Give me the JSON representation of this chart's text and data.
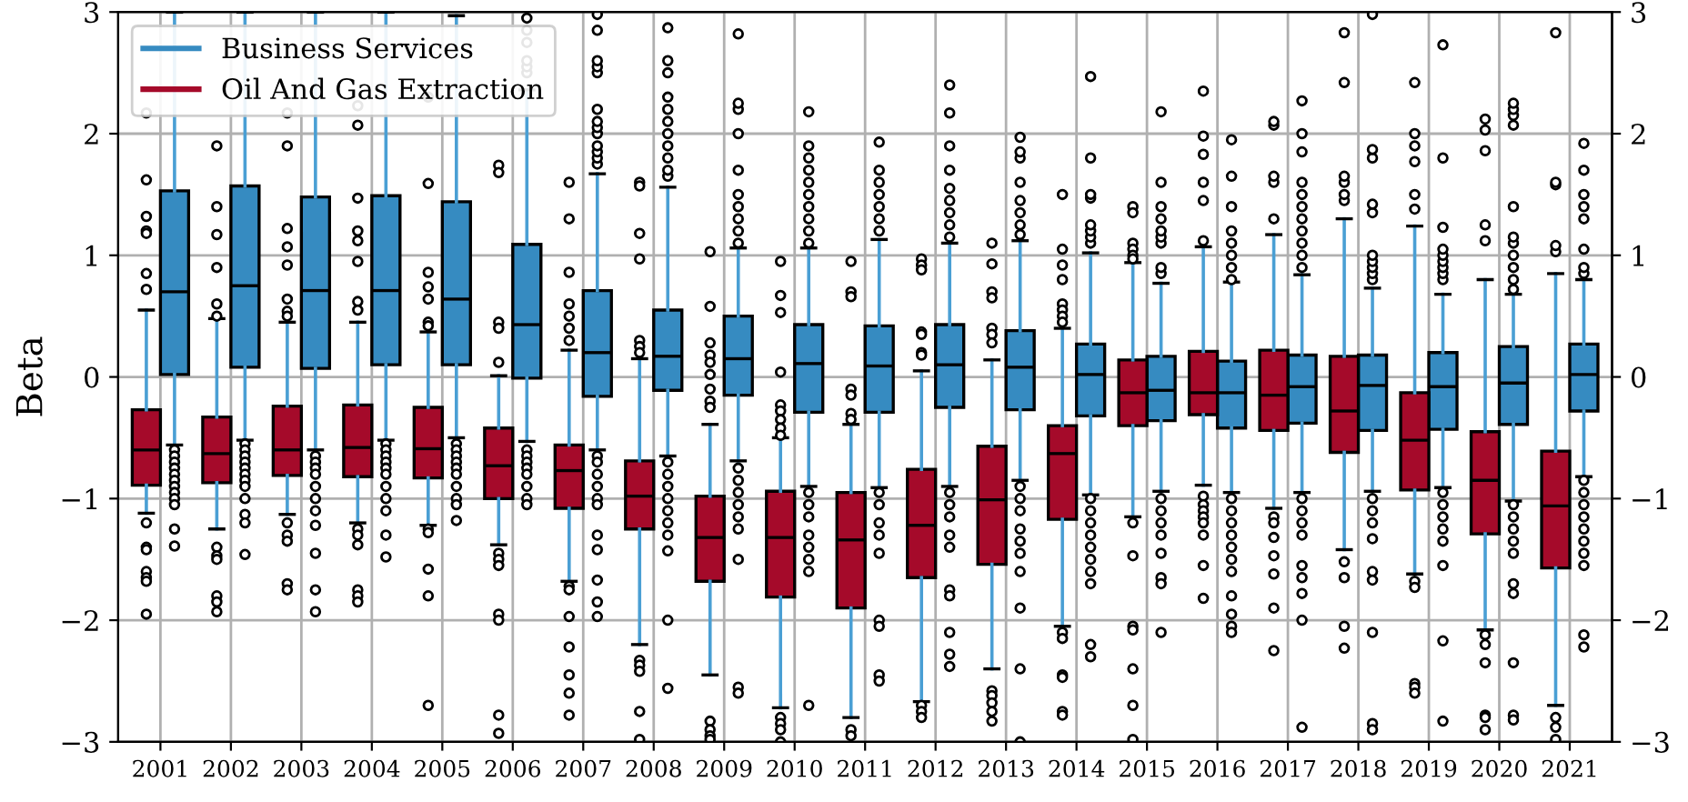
{
  "chart_data": {
    "type": "box",
    "ylabel": "Beta",
    "categories": [
      "2001",
      "2002",
      "2003",
      "2004",
      "2005",
      "2006",
      "2007",
      "2008",
      "2009",
      "2010",
      "2011",
      "2012",
      "2013",
      "2014",
      "2015",
      "2016",
      "2017",
      "2018",
      "2019",
      "2020",
      "2021"
    ],
    "ylim": [
      -3,
      3
    ],
    "yticks": [
      {
        "value": -3,
        "label": "−3"
      },
      {
        "value": -2,
        "label": "−2"
      },
      {
        "value": -1,
        "label": "−1"
      },
      0,
      1,
      2,
      3
    ],
    "y2lim": [
      -3,
      3
    ],
    "y2ticks": [
      {
        "value": -3,
        "label": "−3"
      },
      {
        "value": -2,
        "label": "−2"
      },
      {
        "value": -1,
        "label": "−1"
      },
      0,
      1,
      2,
      3
    ],
    "grid": true,
    "legend": "top left",
    "series": [
      {
        "name": "Business Services",
        "color": "#368bc1",
        "boxes": [
          {
            "low": -0.56,
            "q1": 0.02,
            "median": 0.7,
            "q3": 1.53,
            "high": 3,
            "outliers": [
              -0.6,
              -0.65,
              -0.7,
              -0.75,
              -0.8,
              -0.85,
              -0.9,
              -0.95,
              -1.0,
              -1.05,
              -1.25,
              -1.39
            ]
          },
          {
            "low": -0.52,
            "q1": 0.08,
            "median": 0.75,
            "q3": 1.57,
            "high": 3,
            "outliers": [
              -0.55,
              -0.6,
              -0.65,
              -0.7,
              -0.75,
              -0.8,
              -0.85,
              -0.9,
              -1.0,
              -1.13,
              -1.2,
              -1.46
            ]
          },
          {
            "low": -0.6,
            "q1": 0.07,
            "median": 0.71,
            "q3": 1.48,
            "high": 3,
            "outliers": [
              -0.65,
              -0.7,
              -0.75,
              -0.8,
              -0.9,
              -1.0,
              -1.1,
              -1.22,
              -1.45,
              -1.75,
              -1.93
            ]
          },
          {
            "low": -0.52,
            "q1": 0.1,
            "median": 0.71,
            "q3": 1.49,
            "high": 3,
            "outliers": [
              -0.55,
              -0.6,
              -0.65,
              -0.7,
              -0.75,
              -0.8,
              -0.9,
              -1.0,
              -1.1,
              -1.3,
              -1.48
            ]
          },
          {
            "low": -0.5,
            "q1": 0.1,
            "median": 0.64,
            "q3": 1.44,
            "high": 2.97,
            "outliers": [
              -0.55,
              -0.6,
              -0.65,
              -0.7,
              -0.75,
              -0.8,
              -0.9,
              -1.0,
              -1.05,
              -1.18
            ]
          },
          {
            "low": -0.53,
            "q1": -0.01,
            "median": 0.43,
            "q3": 1.09,
            "high": 2.36,
            "outliers": [
              2.5,
              2.55,
              2.6,
              2.75,
              2.85,
              2.95,
              -0.6,
              -0.65,
              -0.7,
              -0.75,
              -0.8,
              -0.9,
              -1.0,
              -1.05
            ]
          },
          {
            "low": -0.6,
            "q1": -0.16,
            "median": 0.2,
            "q3": 0.71,
            "high": 1.67,
            "outliers": [
              1.75,
              1.8,
              1.85,
              1.9,
              2.0,
              2.05,
              2.1,
              2.2,
              2.5,
              2.55,
              2.6,
              2.85,
              2.98,
              -0.65,
              -0.7,
              -0.8,
              -0.9,
              -1.0,
              -1.05,
              -1.3,
              -1.42,
              -1.67,
              -1.85,
              -1.97
            ]
          },
          {
            "low": -0.65,
            "q1": -0.11,
            "median": 0.17,
            "q3": 0.55,
            "high": 1.56,
            "outliers": [
              1.65,
              1.7,
              1.8,
              1.9,
              2.0,
              2.1,
              2.2,
              2.3,
              2.5,
              2.6,
              2.87,
              -0.7,
              -0.8,
              -0.9,
              -1.0,
              -1.1,
              -1.2,
              -1.3,
              -1.43,
              -2.0,
              -2.56
            ]
          },
          {
            "low": -0.69,
            "q1": -0.15,
            "median": 0.15,
            "q3": 0.5,
            "high": 1.06,
            "outliers": [
              1.1,
              1.2,
              1.3,
              1.4,
              1.5,
              1.7,
              2.0,
              2.2,
              2.25,
              2.82,
              -0.75,
              -0.85,
              -0.95,
              -1.05,
              -1.15,
              -1.25,
              -1.5,
              -2.55,
              -2.6
            ]
          },
          {
            "low": -0.9,
            "q1": -0.29,
            "median": 0.11,
            "q3": 0.43,
            "high": 1.06,
            "outliers": [
              1.1,
              1.2,
              1.3,
              1.4,
              1.5,
              1.6,
              1.7,
              1.8,
              1.9,
              2.18,
              -0.95,
              -1.05,
              -1.15,
              -1.3,
              -1.4,
              -1.5,
              -1.6,
              -2.7
            ]
          },
          {
            "low": -0.91,
            "q1": -0.29,
            "median": 0.09,
            "q3": 0.42,
            "high": 1.13,
            "outliers": [
              1.2,
              1.3,
              1.4,
              1.5,
              1.6,
              1.7,
              1.93,
              -0.95,
              -1.05,
              -1.2,
              -1.3,
              -1.45,
              -2.0,
              -2.05,
              -2.45,
              -2.5
            ]
          },
          {
            "low": -0.9,
            "q1": -0.25,
            "median": 0.1,
            "q3": 0.43,
            "high": 1.1,
            "outliers": [
              1.15,
              1.25,
              1.35,
              1.45,
              1.55,
              1.7,
              1.9,
              2.17,
              2.4,
              -0.95,
              -1.05,
              -1.15,
              -1.3,
              -1.4,
              -1.75,
              -1.8,
              -2.1,
              -2.28,
              -2.38
            ]
          },
          {
            "low": -0.85,
            "q1": -0.27,
            "median": 0.08,
            "q3": 0.38,
            "high": 1.12,
            "outliers": [
              1.17,
              1.25,
              1.35,
              1.45,
              1.6,
              1.8,
              1.85,
              1.97,
              -0.9,
              -1.0,
              -1.1,
              -1.25,
              -1.35,
              -1.45,
              -1.6,
              -1.9,
              -2.4,
              -3.0
            ]
          },
          {
            "low": -0.97,
            "q1": -0.32,
            "median": 0.02,
            "q3": 0.27,
            "high": 1.02,
            "outliers": [
              1.1,
              1.15,
              1.2,
              1.25,
              1.47,
              1.5,
              1.8,
              2.47,
              -1.0,
              -1.1,
              -1.2,
              -1.3,
              -1.4,
              -1.5,
              -1.6,
              -1.7,
              -2.2,
              -2.3
            ]
          },
          {
            "low": -0.94,
            "q1": -0.36,
            "median": -0.11,
            "q3": 0.17,
            "high": 0.77,
            "outliers": [
              0.85,
              0.9,
              1.1,
              1.15,
              1.2,
              1.3,
              1.4,
              1.6,
              2.18,
              -1.0,
              -1.1,
              -1.2,
              -1.3,
              -1.45,
              -1.65,
              -1.7,
              -2.1
            ]
          },
          {
            "low": -0.95,
            "q1": -0.42,
            "median": -0.13,
            "q3": 0.13,
            "high": 0.78,
            "outliers": [
              0.8,
              0.9,
              1.0,
              1.1,
              1.2,
              1.4,
              1.65,
              1.95,
              -1.0,
              -1.1,
              -1.2,
              -1.3,
              -1.4,
              -1.5,
              -1.6,
              -1.8,
              -1.95,
              -2.05,
              -2.1
            ]
          },
          {
            "low": -0.95,
            "q1": -0.38,
            "median": -0.08,
            "q3": 0.18,
            "high": 0.84,
            "outliers": [
              0.9,
              1.0,
              1.1,
              1.2,
              1.3,
              1.4,
              1.5,
              1.6,
              1.85,
              2.0,
              2.27,
              -1.0,
              -1.1,
              -1.2,
              -1.3,
              -1.55,
              -1.65,
              -1.78,
              -2.0,
              -2.88
            ]
          },
          {
            "low": -0.94,
            "q1": -0.44,
            "median": -0.07,
            "q3": 0.18,
            "high": 0.73,
            "outliers": [
              0.8,
              0.85,
              0.9,
              0.95,
              1.0,
              1.35,
              1.42,
              1.8,
              1.87,
              2.98,
              -1.0,
              -1.1,
              -1.2,
              -1.33,
              -1.6,
              -1.67,
              -2.1,
              -2.85,
              -2.9
            ]
          },
          {
            "low": -0.91,
            "q1": -0.43,
            "median": -0.08,
            "q3": 0.2,
            "high": 0.68,
            "outliers": [
              0.8,
              0.85,
              0.9,
              0.95,
              1.0,
              1.05,
              1.23,
              1.8,
              2.73,
              -0.95,
              -1.05,
              -1.15,
              -1.25,
              -1.35,
              -1.55,
              -2.17,
              -2.83
            ]
          },
          {
            "low": -1.02,
            "q1": -0.39,
            "median": -0.05,
            "q3": 0.25,
            "high": 0.68,
            "outliers": [
              0.72,
              0.8,
              0.9,
              1.0,
              1.1,
              1.15,
              1.4,
              2.07,
              2.15,
              2.2,
              2.25,
              -1.05,
              -1.15,
              -1.25,
              -1.35,
              -1.45,
              -1.7,
              -1.78,
              -2.35,
              -2.78,
              -2.82
            ]
          },
          {
            "low": -0.82,
            "q1": -0.28,
            "median": 0.02,
            "q3": 0.27,
            "high": 0.8,
            "outliers": [
              0.85,
              0.9,
              1.05,
              1.3,
              1.4,
              1.5,
              1.7,
              1.92,
              -0.85,
              -0.95,
              -1.05,
              -1.15,
              -1.25,
              -1.35,
              -1.45,
              -1.55,
              -2.12,
              -2.22
            ]
          }
        ]
      },
      {
        "name": "Oil And Gas Extraction",
        "color": "#a50a2a",
        "boxes": [
          {
            "low": -1.12,
            "q1": -0.89,
            "median": -0.6,
            "q3": -0.27,
            "high": 0.55,
            "outliers": [
              2.17,
              1.62,
              1.32,
              1.2,
              1.18,
              0.85,
              0.72,
              -1.2,
              -1.4,
              -1.42,
              -1.6,
              -1.65,
              -1.68,
              -1.95
            ]
          },
          {
            "low": -1.25,
            "q1": -0.87,
            "median": -0.63,
            "q3": -0.33,
            "high": 0.48,
            "outliers": [
              1.9,
              1.4,
              1.17,
              0.9,
              0.6,
              0.5,
              -1.4,
              -1.47,
              -1.5,
              -1.8,
              -1.85,
              -1.93
            ]
          },
          {
            "low": -1.13,
            "q1": -0.81,
            "median": -0.6,
            "q3": -0.24,
            "high": 0.45,
            "outliers": [
              2.17,
              1.9,
              1.22,
              1.07,
              0.92,
              0.64,
              0.54,
              0.5,
              -1.2,
              -1.3,
              -1.35,
              -1.7,
              -1.75
            ]
          },
          {
            "low": -1.2,
            "q1": -0.82,
            "median": -0.58,
            "q3": -0.23,
            "high": 0.45,
            "outliers": [
              2.23,
              2.07,
              1.47,
              1.2,
              1.12,
              0.95,
              0.62,
              0.55,
              -1.25,
              -1.3,
              -1.38,
              -1.75,
              -1.8,
              -1.85
            ]
          },
          {
            "low": -1.22,
            "q1": -0.83,
            "median": -0.59,
            "q3": -0.25,
            "high": 0.37,
            "outliers": [
              2.3,
              1.59,
              0.86,
              0.74,
              0.64,
              0.45,
              0.42,
              -1.25,
              -1.28,
              -1.58,
              -1.8,
              -2.7
            ]
          },
          {
            "low": -1.38,
            "q1": -1.0,
            "median": -0.73,
            "q3": -0.42,
            "high": 0.01,
            "outliers": [
              1.74,
              1.68,
              0.45,
              0.4,
              0.12,
              -1.45,
              -1.5,
              -1.55,
              -1.95,
              -2.0,
              -2.78,
              -2.93
            ]
          },
          {
            "low": -1.68,
            "q1": -1.08,
            "median": -0.77,
            "q3": -0.56,
            "high": 0.22,
            "outliers": [
              1.6,
              1.3,
              0.86,
              0.6,
              0.5,
              0.4,
              0.3,
              -1.72,
              -1.75,
              -1.97,
              -2.22,
              -2.45,
              -2.6,
              -2.78
            ]
          },
          {
            "low": -2.2,
            "q1": -1.25,
            "median": -0.98,
            "q3": -0.69,
            "high": 0.15,
            "outliers": [
              1.6,
              1.57,
              1.18,
              0.97,
              0.3,
              0.25,
              0.2,
              -2.33,
              -2.37,
              -2.42,
              -2.75,
              -2.98
            ]
          },
          {
            "low": -2.45,
            "q1": -1.68,
            "median": -1.32,
            "q3": -0.98,
            "high": -0.39,
            "outliers": [
              1.03,
              0.58,
              0.28,
              0.18,
              0.12,
              0.02,
              -0.1,
              -0.2,
              -0.25,
              -2.83,
              -2.9,
              -2.95,
              -2.98
            ]
          },
          {
            "low": -2.72,
            "q1": -1.81,
            "median": -1.32,
            "q3": -0.94,
            "high": -0.5,
            "outliers": [
              0.95,
              0.67,
              0.53,
              0.04,
              -0.23,
              -0.28,
              -0.35,
              -0.42,
              -0.48,
              -2.8,
              -2.85,
              -2.9,
              -3.0
            ]
          },
          {
            "low": -2.8,
            "q1": -1.9,
            "median": -1.34,
            "q3": -0.95,
            "high": -0.39,
            "outliers": [
              0.95,
              0.7,
              0.66,
              -0.1,
              -0.15,
              -0.3,
              -0.35,
              -2.9,
              -2.95
            ]
          },
          {
            "low": -2.67,
            "q1": -1.65,
            "median": -1.22,
            "q3": -0.76,
            "high": 0.05,
            "outliers": [
              0.97,
              0.92,
              0.88,
              0.37,
              0.35,
              0.2,
              0.18,
              -2.7,
              -2.75,
              -2.8
            ]
          },
          {
            "low": -2.4,
            "q1": -1.54,
            "median": -1.01,
            "q3": -0.57,
            "high": 0.14,
            "outliers": [
              1.1,
              0.93,
              0.7,
              0.65,
              0.4,
              0.35,
              0.28,
              -2.58,
              -2.62,
              -2.68,
              -2.75,
              -2.83
            ]
          },
          {
            "low": -2.05,
            "q1": -1.17,
            "median": -0.63,
            "q3": -0.4,
            "high": 0.4,
            "outliers": [
              1.5,
              1.05,
              0.92,
              0.8,
              0.6,
              0.55,
              0.5,
              0.45,
              -2.1,
              -2.15,
              -2.45,
              -2.47,
              -2.75,
              -2.78
            ]
          },
          {
            "low": -1.15,
            "q1": -0.4,
            "median": -0.13,
            "q3": 0.14,
            "high": 0.94,
            "outliers": [
              1.4,
              1.35,
              1.1,
              1.05,
              1.0,
              0.97,
              -1.2,
              -1.47,
              -2.05,
              -2.08,
              -2.4,
              -2.7,
              -2.98
            ]
          },
          {
            "low": -0.89,
            "q1": -0.31,
            "median": -0.13,
            "q3": 0.21,
            "high": 1.07,
            "outliers": [
              1.12,
              1.45,
              1.6,
              1.83,
              1.98,
              2.35,
              -0.98,
              -1.05,
              -1.1,
              -1.15,
              -1.2,
              -1.3,
              -1.55,
              -1.82
            ]
          },
          {
            "low": -1.08,
            "q1": -0.44,
            "median": -0.15,
            "q3": 0.22,
            "high": 1.17,
            "outliers": [
              1.3,
              1.6,
              1.65,
              2.07,
              2.1,
              -1.15,
              -1.2,
              -1.32,
              -1.47,
              -1.62,
              -1.9,
              -2.25
            ]
          },
          {
            "low": -1.42,
            "q1": -0.62,
            "median": -0.28,
            "q3": 0.17,
            "high": 1.3,
            "outliers": [
              1.45,
              1.5,
              1.6,
              1.65,
              2.42,
              2.83,
              -1.52,
              -1.65,
              -2.05,
              -2.23
            ]
          },
          {
            "low": -1.62,
            "q1": -0.93,
            "median": -0.52,
            "q3": -0.13,
            "high": 1.24,
            "outliers": [
              1.38,
              1.5,
              1.77,
              1.9,
              2.0,
              2.42,
              -1.68,
              -1.73,
              -2.52,
              -2.55,
              -2.6
            ]
          },
          {
            "low": -2.08,
            "q1": -1.29,
            "median": -0.85,
            "q3": -0.45,
            "high": 0.8,
            "outliers": [
              1.12,
              1.25,
              1.86,
              2.03,
              2.12,
              -2.12,
              -2.2,
              -2.35,
              -2.78,
              -2.8,
              -2.9
            ]
          },
          {
            "low": -2.7,
            "q1": -1.57,
            "median": -1.06,
            "q3": -0.61,
            "high": 0.85,
            "outliers": [
              1.03,
              1.08,
              1.58,
              1.6,
              2.83,
              -2.8,
              -2.88,
              -2.98
            ]
          }
        ]
      }
    ]
  }
}
